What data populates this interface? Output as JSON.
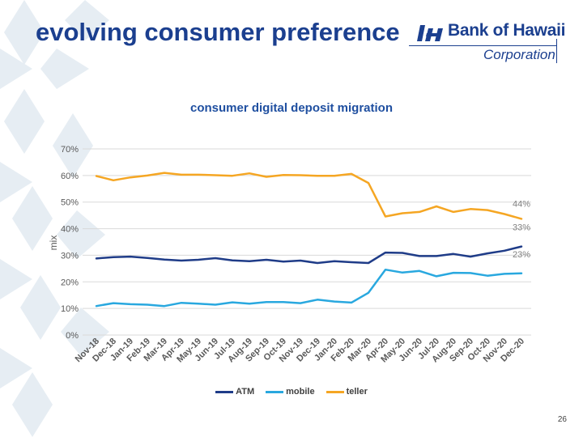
{
  "slide": {
    "title": "evolving consumer preference",
    "page_number": "26"
  },
  "logo": {
    "name": "Bank of Hawaii",
    "subtitle": "Corporation"
  },
  "colors": {
    "brand": "#1b3f8f",
    "atm": "#1f3c88",
    "mobile": "#29a8df",
    "teller": "#f5a623"
  },
  "chart_data": {
    "type": "line",
    "title": "consumer digital deposit migration",
    "xlabel": "",
    "ylabel": "mix",
    "ylim": [
      0,
      70
    ],
    "yticks": [
      "0%",
      "10%",
      "20%",
      "30%",
      "40%",
      "50%",
      "60%",
      "70%"
    ],
    "grid": true,
    "legend_position": "bottom",
    "categories": [
      "Nov-18",
      "Dec-18",
      "Jan-19",
      "Feb-19",
      "Mar-19",
      "Apr-19",
      "May-19",
      "Jun-19",
      "Jul-19",
      "Aug-19",
      "Sep-19",
      "Oct-19",
      "Nov-19",
      "Dec-19",
      "Jan-20",
      "Feb-20",
      "Mar-20",
      "Apr-20",
      "May-20",
      "Jun-20",
      "Jul-20",
      "Aug-20",
      "Sep-20",
      "Oct-20",
      "Nov-20",
      "Dec-20"
    ],
    "series": [
      {
        "name": "ATM",
        "color": "#1f3c88",
        "values": [
          28.8,
          29.3,
          29.5,
          29.0,
          28.4,
          28.0,
          28.3,
          28.9,
          28.1,
          27.8,
          28.3,
          27.6,
          28.0,
          27.1,
          27.8,
          27.4,
          27.1,
          31.0,
          30.9,
          29.7,
          29.7,
          30.5,
          29.5,
          30.7,
          31.7,
          33.3
        ],
        "end_label": "33%"
      },
      {
        "name": "mobile",
        "color": "#29a8df",
        "values": [
          10.9,
          12.0,
          11.6,
          11.4,
          10.9,
          12.1,
          11.8,
          11.4,
          12.3,
          11.8,
          12.4,
          12.4,
          12.0,
          13.3,
          12.6,
          12.2,
          15.9,
          24.6,
          23.5,
          24.1,
          22.1,
          23.4,
          23.3,
          22.3,
          23.0,
          23.2
        ],
        "end_label": "23%"
      },
      {
        "name": "teller",
        "color": "#f5a623",
        "values": [
          59.8,
          58.2,
          59.3,
          60.0,
          61.0,
          60.3,
          60.3,
          60.1,
          59.9,
          60.8,
          59.5,
          60.2,
          60.1,
          59.9,
          59.9,
          60.6,
          57.2,
          44.6,
          45.8,
          46.3,
          48.4,
          46.3,
          47.4,
          47.0,
          45.5,
          43.7
        ],
        "end_label": "44%"
      }
    ]
  }
}
